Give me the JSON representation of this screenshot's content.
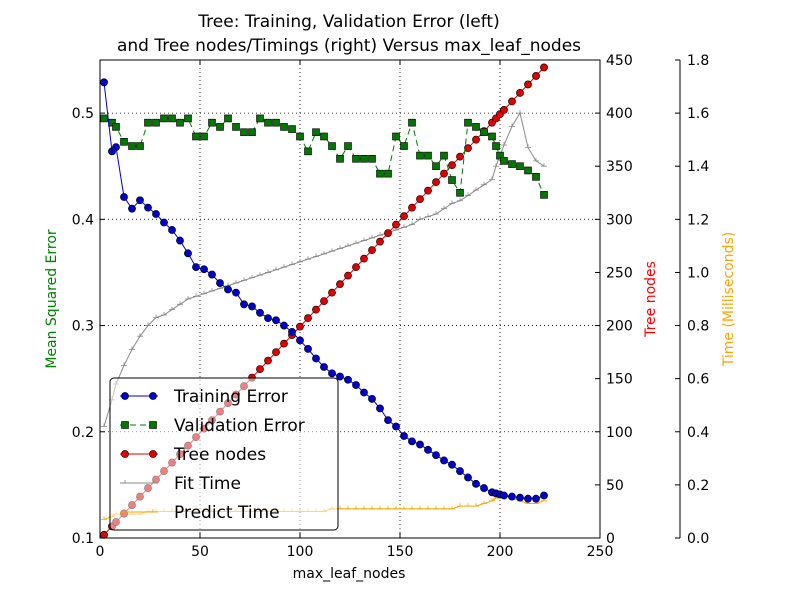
{
  "chart_data": {
    "type": "line",
    "title_line1": "Tree: Training, Validation Error (left)",
    "title_line2": "and Tree nodes/Timings (right) Versus max_leaf_nodes",
    "xlabel": "max_leaf_nodes",
    "ylabel_left": "Mean Squared Error",
    "ylabel_right1": "Tree nodes",
    "ylabel_right2": "Time (Milliseconds)",
    "xlim": [
      0,
      250
    ],
    "ylim_left": [
      0.1,
      0.55
    ],
    "ylim_right1": [
      0,
      450
    ],
    "ylim_right2": [
      0,
      1.8
    ],
    "xticks": [
      "0",
      "50",
      "100",
      "150",
      "200",
      "250"
    ],
    "yticks_left": [
      "0.1",
      "0.2",
      "0.3",
      "0.4",
      "0.5"
    ],
    "yticks_right1": [
      "0",
      "50",
      "100",
      "150",
      "200",
      "250",
      "300",
      "350",
      "400",
      "450"
    ],
    "yticks_right2": [
      "0.0",
      "0.2",
      "0.4",
      "0.6",
      "0.8",
      "1.0",
      "1.2",
      "1.4",
      "1.6",
      "1.8"
    ],
    "grid": true,
    "legend_position": "lower-left",
    "colors": {
      "training": "#0000cc",
      "validation": "#007700",
      "tree": "#dd0000",
      "fit": "#888888",
      "predict": "#ffa500",
      "ylabel_left": "#008000",
      "ylabel_right1": "#ff0000",
      "ylabel_right2": "#ffa500"
    },
    "x": [
      2,
      6,
      8,
      12,
      16,
      20,
      24,
      28,
      32,
      36,
      40,
      44,
      48,
      52,
      56,
      60,
      64,
      68,
      72,
      76,
      80,
      84,
      88,
      92,
      96,
      100,
      104,
      108,
      112,
      116,
      120,
      124,
      128,
      132,
      136,
      140,
      144,
      148,
      152,
      156,
      160,
      164,
      168,
      172,
      176,
      180,
      184,
      188,
      192,
      196,
      198,
      200,
      202,
      206,
      210,
      214,
      218,
      222
    ],
    "series": [
      {
        "key": "training",
        "name": "Training Error",
        "axis": "left",
        "marker": "circle",
        "dash": "solid",
        "values": [
          0.529,
          0.464,
          0.468,
          0.421,
          0.41,
          0.418,
          0.411,
          0.405,
          0.397,
          0.39,
          0.38,
          0.368,
          0.355,
          0.353,
          0.348,
          0.34,
          0.334,
          0.331,
          0.32,
          0.318,
          0.312,
          0.307,
          0.305,
          0.3,
          0.294,
          0.286,
          0.278,
          0.269,
          0.261,
          0.255,
          0.252,
          0.249,
          0.244,
          0.237,
          0.231,
          0.222,
          0.211,
          0.205,
          0.196,
          0.191,
          0.188,
          0.183,
          0.178,
          0.173,
          0.169,
          0.163,
          0.157,
          0.151,
          0.147,
          0.143,
          0.142,
          0.141,
          0.14,
          0.139,
          0.138,
          0.137,
          0.137,
          0.14
        ]
      },
      {
        "key": "validation",
        "name": "Validation Error",
        "axis": "left",
        "marker": "square",
        "dash": "dashed",
        "values": [
          0.495,
          0.491,
          0.487,
          0.473,
          0.469,
          0.469,
          0.491,
          0.491,
          0.495,
          0.495,
          0.491,
          0.495,
          0.478,
          0.478,
          0.491,
          0.487,
          0.495,
          0.487,
          0.482,
          0.482,
          0.495,
          0.491,
          0.491,
          0.487,
          0.485,
          0.478,
          0.464,
          0.482,
          0.478,
          0.469,
          0.457,
          0.469,
          0.457,
          0.457,
          0.457,
          0.443,
          0.443,
          0.478,
          0.469,
          0.491,
          0.46,
          0.46,
          0.45,
          0.46,
          0.437,
          0.425,
          0.491,
          0.487,
          0.482,
          0.478,
          0.469,
          0.46,
          0.455,
          0.452,
          0.45,
          0.446,
          0.44,
          0.423
        ]
      },
      {
        "key": "tree",
        "name": "Tree nodes",
        "axis": "right1",
        "marker": "circle",
        "dash": "solid",
        "values": [
          3,
          11,
          15,
          23,
          31,
          39,
          47,
          55,
          63,
          71,
          79,
          87,
          95,
          103,
          111,
          119,
          127,
          135,
          143,
          151,
          159,
          167,
          175,
          183,
          191,
          199,
          207,
          215,
          223,
          231,
          239,
          247,
          255,
          263,
          271,
          279,
          287,
          295,
          303,
          311,
          319,
          327,
          335,
          343,
          351,
          359,
          367,
          375,
          383,
          391,
          395,
          399,
          403,
          411,
          419,
          427,
          435,
          443
        ]
      },
      {
        "key": "fit",
        "name": "Fit Time",
        "axis": "right2",
        "marker": "tri",
        "dash": "solid",
        "values": [
          0.42,
          0.52,
          0.58,
          0.65,
          0.71,
          0.76,
          0.8,
          0.83,
          0.84,
          0.86,
          0.88,
          0.9,
          0.91,
          0.92,
          0.93,
          0.94,
          0.95,
          0.96,
          0.97,
          0.98,
          0.99,
          1.0,
          1.01,
          1.02,
          1.03,
          1.04,
          1.05,
          1.06,
          1.07,
          1.08,
          1.09,
          1.1,
          1.11,
          1.12,
          1.13,
          1.14,
          1.15,
          1.16,
          1.17,
          1.18,
          1.2,
          1.21,
          1.22,
          1.24,
          1.26,
          1.27,
          1.29,
          1.31,
          1.33,
          1.35,
          1.4,
          1.44,
          1.48,
          1.55,
          1.6,
          1.47,
          1.42,
          1.4
        ]
      },
      {
        "key": "predict",
        "name": "Predict Time",
        "axis": "right2",
        "marker": "tri",
        "dash": "solid",
        "values": [
          0.07,
          0.08,
          0.09,
          0.09,
          0.09,
          0.09,
          0.1,
          0.1,
          0.1,
          0.1,
          0.1,
          0.1,
          0.1,
          0.1,
          0.1,
          0.1,
          0.1,
          0.1,
          0.1,
          0.1,
          0.1,
          0.1,
          0.1,
          0.1,
          0.1,
          0.1,
          0.1,
          0.1,
          0.1,
          0.11,
          0.11,
          0.11,
          0.11,
          0.11,
          0.11,
          0.11,
          0.11,
          0.11,
          0.11,
          0.11,
          0.11,
          0.11,
          0.11,
          0.11,
          0.11,
          0.12,
          0.12,
          0.12,
          0.13,
          0.14,
          0.15,
          0.16,
          0.16,
          0.15,
          0.14,
          0.13,
          0.13,
          0.14
        ]
      }
    ]
  }
}
